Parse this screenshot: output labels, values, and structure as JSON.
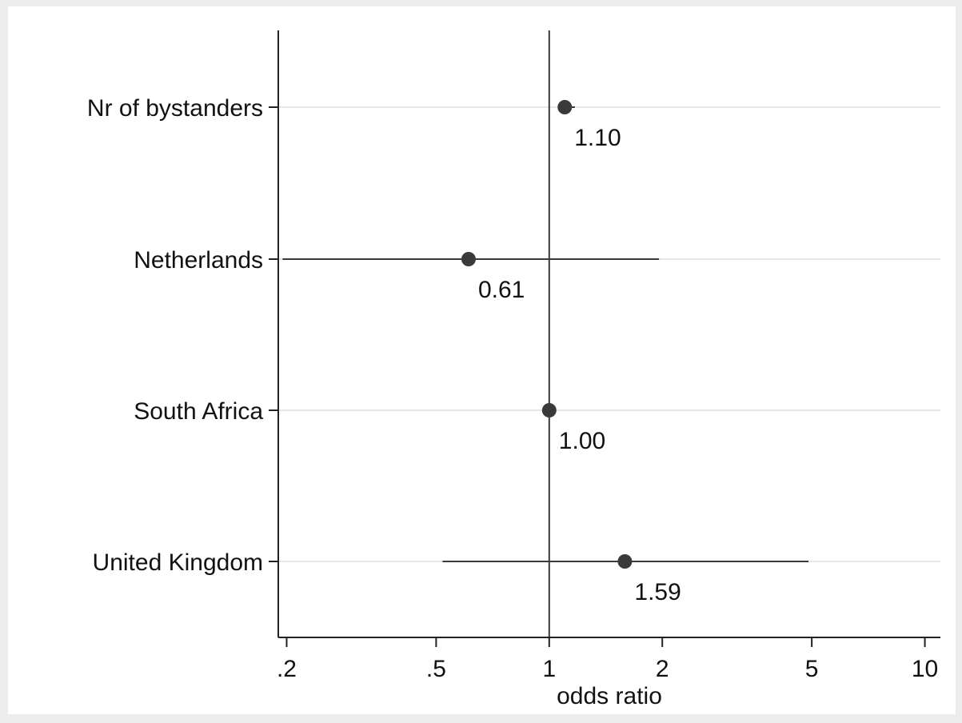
{
  "chart_data": {
    "type": "scatter",
    "subtype": "forest-plot",
    "title": "",
    "xlabel": "odds ratio",
    "ylabel": "",
    "x_scale": "log",
    "xlim": [
      0.19,
      11
    ],
    "x_ticks": [
      0.2,
      0.5,
      1,
      2,
      5,
      10
    ],
    "x_tick_labels": [
      ".2",
      ".5",
      "1",
      "2",
      "5",
      "10"
    ],
    "reference_line": 1,
    "grid": "horizontal",
    "legend": "none",
    "categories": [
      "Nr of bystanders",
      "Netherlands",
      "South Africa",
      "United Kingdom"
    ],
    "points": [
      {
        "label": "Nr of bystanders",
        "value": 1.1,
        "value_label": "1.10",
        "ci": [
          1.07,
          1.17
        ]
      },
      {
        "label": "Netherlands",
        "value": 0.61,
        "value_label": "0.61",
        "ci": [
          0.195,
          1.96
        ]
      },
      {
        "label": "South Africa",
        "value": 1.0,
        "value_label": "1.00",
        "ci": [
          1.0,
          1.0
        ]
      },
      {
        "label": "United Kingdom",
        "value": 1.59,
        "value_label": "1.59",
        "ci": [
          0.52,
          4.9
        ]
      }
    ],
    "colors": {
      "page_background": "#ececec",
      "plot_background": "#ffffff",
      "marker": "#3a3a3a",
      "ci_line": "#3a3a3a",
      "reference_line": "#3a3a3a",
      "gridline": "#e6e6e6",
      "axis": "#222222"
    }
  }
}
